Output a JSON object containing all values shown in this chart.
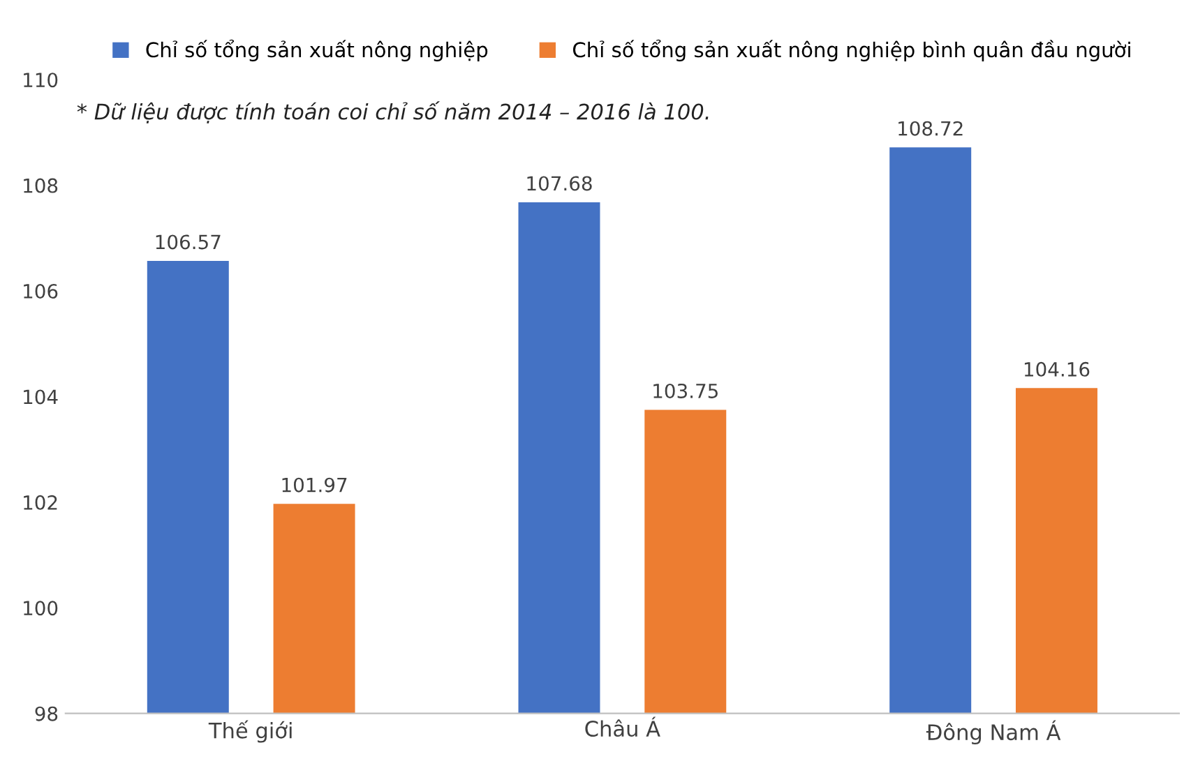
{
  "chart_data": {
    "type": "bar",
    "categories": [
      "Thế giới",
      "Châu Á",
      "Đông Nam Á"
    ],
    "series": [
      {
        "name": "Chỉ số tổng sản xuất nông nghiệp",
        "color": "#4472c4",
        "values": [
          106.57,
          107.68,
          108.72
        ]
      },
      {
        "name": "Chỉ số tổng sản xuất nông nghiệp bình quân đầu người",
        "color": "#ed7d31",
        "values": [
          101.97,
          103.75,
          104.16
        ]
      }
    ],
    "ylim": [
      98,
      110
    ],
    "yticks": [
      98,
      100,
      102,
      104,
      106,
      108,
      110
    ],
    "annotations": [
      "* Dữ liệu được tính toán coi chỉ số năm 2014 – 2016 là 100."
    ],
    "data_labels": true,
    "grid": false,
    "legend": "top"
  }
}
